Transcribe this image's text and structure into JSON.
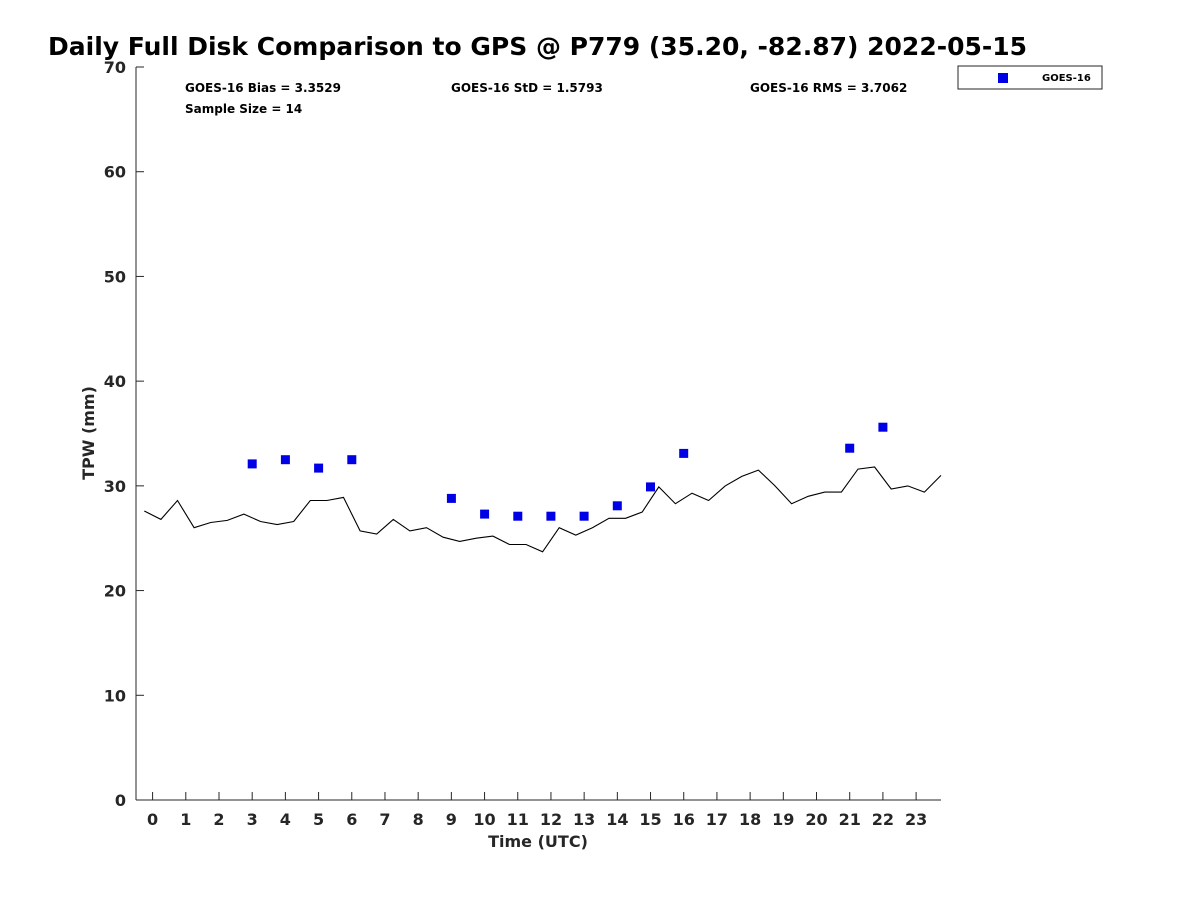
{
  "chart_data": {
    "type": "scatter",
    "title": "Daily Full Disk Comparison to GPS @ P779 (35.20, -82.87) 2022-05-15",
    "xlabel": "Time (UTC)",
    "ylabel": "TPW (mm)",
    "xlim": [
      -0.5,
      23.75
    ],
    "ylim": [
      0,
      70
    ],
    "xticks": [
      0,
      1,
      2,
      3,
      4,
      5,
      6,
      7,
      8,
      9,
      10,
      11,
      12,
      13,
      14,
      15,
      16,
      17,
      18,
      19,
      20,
      21,
      22,
      23
    ],
    "yticks": [
      0,
      10,
      20,
      30,
      40,
      50,
      60,
      70
    ],
    "grid": false,
    "legend_position": "top-right (outside plot)",
    "stats": {
      "bias": "GOES-16 Bias = 3.3529",
      "std": "GOES-16 StD = 1.5793",
      "rms": "GOES-16 RMS = 3.7062",
      "sample": "Sample Size = 14"
    },
    "series": [
      {
        "name": "GOES-16",
        "kind": "marker",
        "color": "#0000e6",
        "x": [
          3,
          4,
          5,
          6,
          9,
          10,
          11,
          12,
          13,
          14,
          15,
          16,
          21,
          22
        ],
        "y": [
          32.1,
          32.5,
          31.7,
          32.5,
          28.8,
          27.3,
          27.1,
          27.1,
          27.1,
          28.1,
          29.9,
          33.1,
          33.6,
          35.6
        ]
      },
      {
        "kind": "line",
        "color": "#000000",
        "x": [
          -0.25,
          0.25,
          0.75,
          1.25,
          1.75,
          2.25,
          2.75,
          3.25,
          3.75,
          4.25,
          4.75,
          5.25,
          5.75,
          6.25,
          6.75,
          7.25,
          7.75,
          8.25,
          8.75,
          9.25,
          9.75,
          10.25,
          10.75,
          11.25,
          11.75,
          12.25,
          12.75,
          13.25,
          13.75,
          14.25,
          14.75,
          15.25,
          15.75,
          16.25,
          16.75,
          17.25,
          17.75,
          18.25,
          18.75,
          19.25,
          19.75,
          20.25,
          20.75,
          21.25,
          21.75,
          22.25,
          22.75,
          23.25,
          23.75
        ],
        "y": [
          27.6,
          26.8,
          28.6,
          26.0,
          26.5,
          26.7,
          27.3,
          26.6,
          26.3,
          26.6,
          28.6,
          28.6,
          28.9,
          25.7,
          25.4,
          26.8,
          25.7,
          26.0,
          25.1,
          24.7,
          25.0,
          25.2,
          24.4,
          24.4,
          23.7,
          26.0,
          25.3,
          26.0,
          26.9,
          26.9,
          27.5,
          29.9,
          28.3,
          29.3,
          28.6,
          30.0,
          30.9,
          31.5,
          30.0,
          28.3,
          29.0,
          29.4,
          29.4,
          31.6,
          31.8,
          29.7,
          30.0,
          29.4,
          31.0
        ]
      }
    ]
  }
}
